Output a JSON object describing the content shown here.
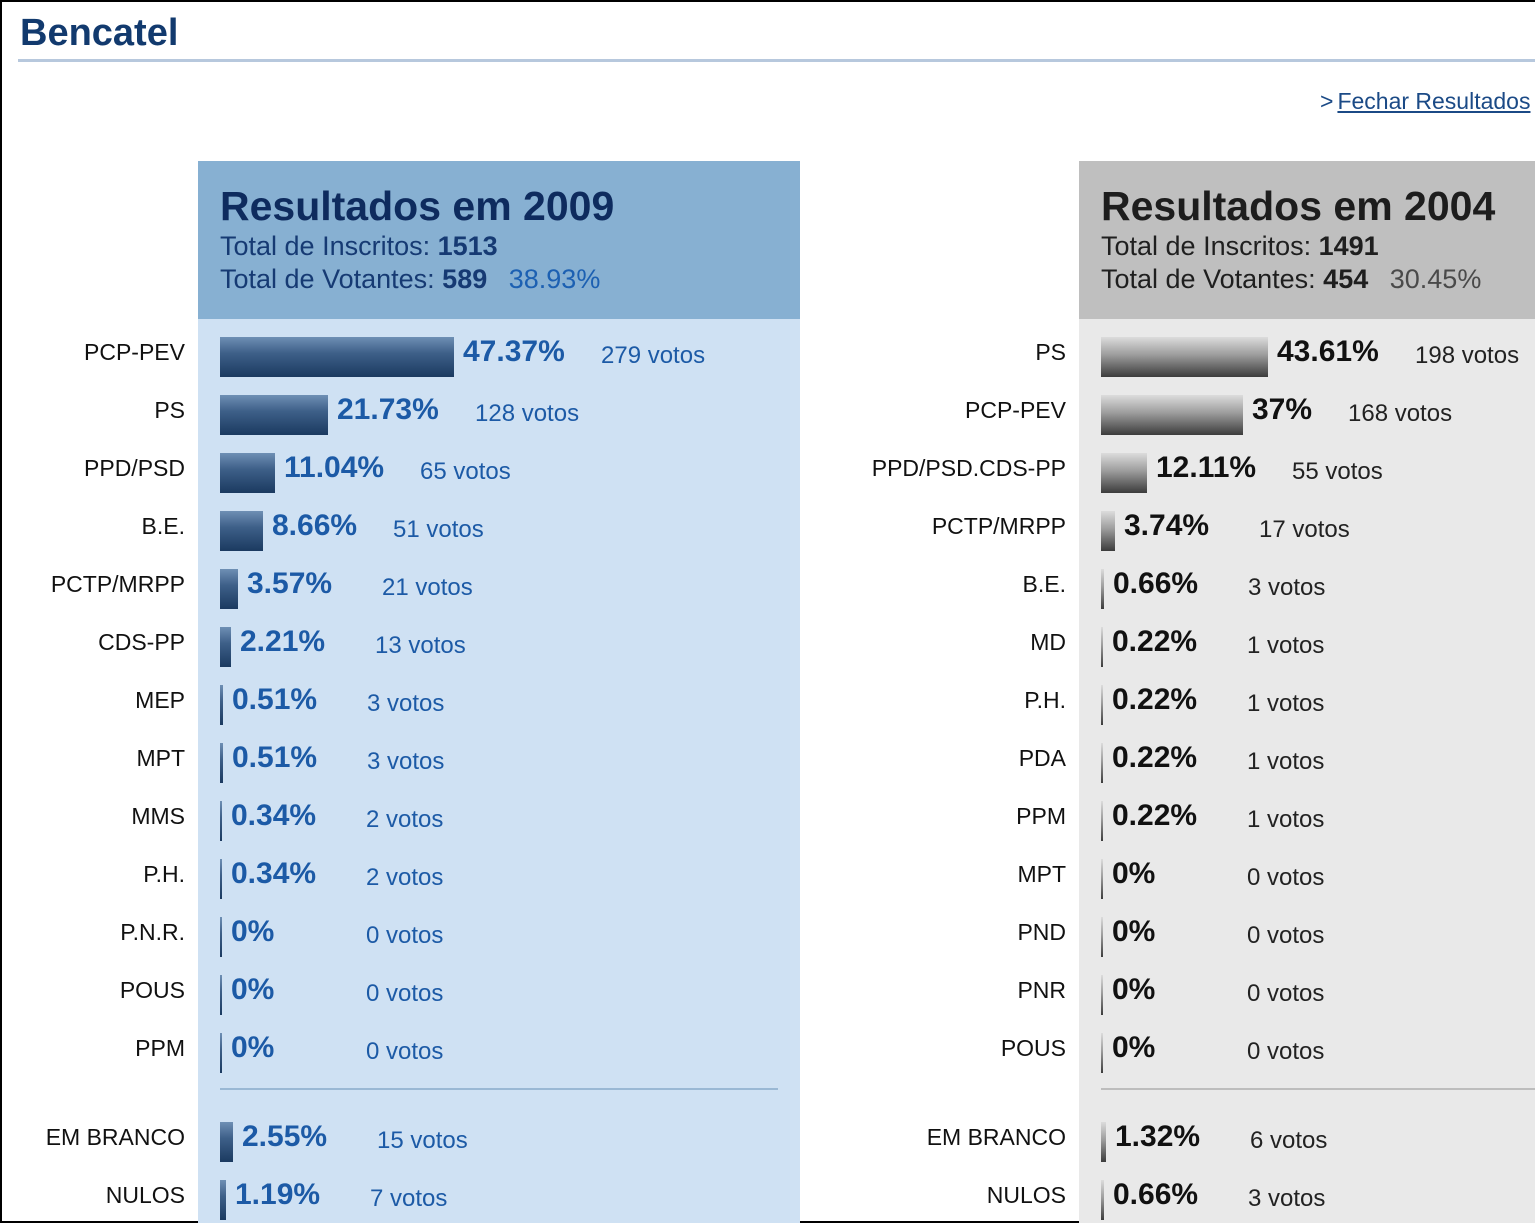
{
  "site_title": "Bencatel",
  "close_link": {
    "arrow": ">",
    "label": "Fechar Resultados"
  },
  "colors": {
    "title": "#123a6e",
    "panel_2009_bg": "#cfe1f3",
    "panel_2009_header": "#87b0d2",
    "panel_2004_bg": "#e9e9e9",
    "panel_2004_header": "#bfbfbf",
    "bar_2009": "#2c4d75",
    "bar_2004": "#6e6e6e",
    "pct_2009": "#1c5aa6"
  },
  "panels": [
    {
      "year": "2009",
      "title": "Resultados em 2009",
      "inscritos_label": "Total de Inscritos:",
      "inscritos_value": "1513",
      "votantes_label": "Total de Votantes:",
      "votantes_value": "589",
      "votantes_pct": "38.93%",
      "results": [
        {
          "party": "PCP-PEV",
          "pct": "47.37%",
          "votes": "279 votos",
          "value": 47.37
        },
        {
          "party": "PS",
          "pct": "21.73%",
          "votes": "128 votos",
          "value": 21.73
        },
        {
          "party": "PPD/PSD",
          "pct": "11.04%",
          "votes": "65 votos",
          "value": 11.04
        },
        {
          "party": "B.E.",
          "pct": "8.66%",
          "votes": "51 votos",
          "value": 8.66
        },
        {
          "party": "PCTP/MRPP",
          "pct": "3.57%",
          "votes": "21 votos",
          "value": 3.57
        },
        {
          "party": "CDS-PP",
          "pct": "2.21%",
          "votes": "13 votos",
          "value": 2.21
        },
        {
          "party": "MEP",
          "pct": "0.51%",
          "votes": "3 votos",
          "value": 0.51
        },
        {
          "party": "MPT",
          "pct": "0.51%",
          "votes": "3 votos",
          "value": 0.51
        },
        {
          "party": "MMS",
          "pct": "0.34%",
          "votes": "2 votos",
          "value": 0.34
        },
        {
          "party": "P.H.",
          "pct": "0.34%",
          "votes": "2 votos",
          "value": 0.34
        },
        {
          "party": "P.N.R.",
          "pct": "0%",
          "votes": "0 votos",
          "value": 0
        },
        {
          "party": "POUS",
          "pct": "0%",
          "votes": "0 votos",
          "value": 0
        },
        {
          "party": "PPM",
          "pct": "0%",
          "votes": "0 votos",
          "value": 0
        }
      ],
      "extra": [
        {
          "party": "EM BRANCO",
          "pct": "2.55%",
          "votes": "15 votos",
          "value": 2.55
        },
        {
          "party": "NULOS",
          "pct": "1.19%",
          "votes": "7 votos",
          "value": 1.19
        }
      ]
    },
    {
      "year": "2004",
      "title": "Resultados em 2004",
      "inscritos_label": "Total de Inscritos:",
      "inscritos_value": "1491",
      "votantes_label": "Total de Votantes:",
      "votantes_value": "454",
      "votantes_pct": "30.45%",
      "results": [
        {
          "party": "PS",
          "pct": "43.61%",
          "votes": "198 votos",
          "value": 43.61
        },
        {
          "party": "PCP-PEV",
          "pct": "37%",
          "votes": "168 votos",
          "value": 37
        },
        {
          "party": "PPD/PSD.CDS-PP",
          "pct": "12.11%",
          "votes": "55 votos",
          "value": 12.11
        },
        {
          "party": "PCTP/MRPP",
          "pct": "3.74%",
          "votes": "17 votos",
          "value": 3.74
        },
        {
          "party": "B.E.",
          "pct": "0.66%",
          "votes": "3 votos",
          "value": 0.66
        },
        {
          "party": "MD",
          "pct": "0.22%",
          "votes": "1 votos",
          "value": 0.22
        },
        {
          "party": "P.H.",
          "pct": "0.22%",
          "votes": "1 votos",
          "value": 0.22
        },
        {
          "party": "PDA",
          "pct": "0.22%",
          "votes": "1 votos",
          "value": 0.22
        },
        {
          "party": "PPM",
          "pct": "0.22%",
          "votes": "1 votos",
          "value": 0.22
        },
        {
          "party": "MPT",
          "pct": "0%",
          "votes": "0 votos",
          "value": 0
        },
        {
          "party": "PND",
          "pct": "0%",
          "votes": "0 votos",
          "value": 0
        },
        {
          "party": "PNR",
          "pct": "0%",
          "votes": "0 votos",
          "value": 0
        },
        {
          "party": "POUS",
          "pct": "0%",
          "votes": "0 votos",
          "value": 0
        }
      ],
      "extra": [
        {
          "party": "EM BRANCO",
          "pct": "1.32%",
          "votes": "6 votos",
          "value": 1.32
        },
        {
          "party": "NULOS",
          "pct": "0.66%",
          "votes": "3 votos",
          "value": 0.66
        }
      ]
    }
  ]
}
